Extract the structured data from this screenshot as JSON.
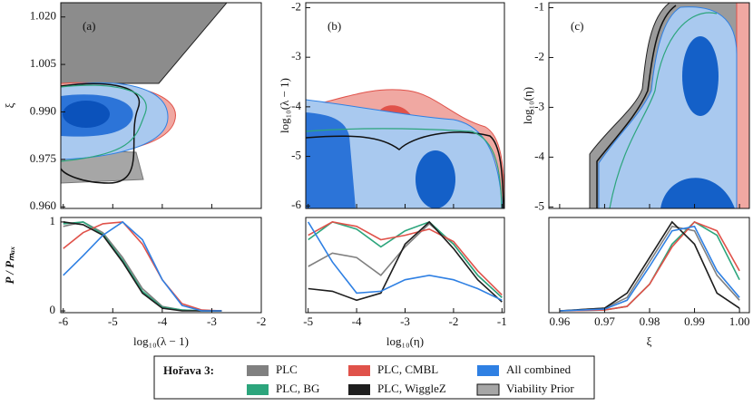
{
  "chart_data": [
    {
      "type": "contour",
      "label": "(a)",
      "ylabel": "ξ",
      "ylim": [
        0.9595,
        1.0245
      ],
      "yticks": [
        {
          "value": 1.02,
          "label": "1.020"
        },
        1.005,
        {
          "value": 0.99,
          "label": "0.990"
        },
        0.975,
        {
          "value": 0.96,
          "label": "0.960"
        }
      ]
    },
    {
      "type": "contour",
      "label": "(b)",
      "ylabel": "log₁₀(λ − 1)",
      "ylim": [
        -6.05,
        -1.9
      ],
      "yticks": [
        -2,
        -3,
        -4,
        -5,
        -6
      ]
    },
    {
      "type": "contour",
      "label": "(c)",
      "ylabel": "log₁₀(η)",
      "ylim": [
        -5.03,
        -0.9
      ],
      "yticks": [
        -1,
        -2,
        -3,
        -4,
        -5
      ]
    },
    {
      "type": "line",
      "xlabel": "log₁₀(λ − 1)",
      "ylabel": "P / Pₘₐₓ",
      "xlim": [
        -6.05,
        -2
      ],
      "xticks": [
        -6,
        -5,
        -4,
        -3,
        -2
      ],
      "ylim": [
        -0.02,
        1.05
      ],
      "yticks": [
        0,
        1
      ],
      "x": [
        -6,
        -5.6,
        -5.2,
        -4.8,
        -4.4,
        -4,
        -3.6,
        -3.2,
        -2.8
      ],
      "series": [
        {
          "name": "PLC",
          "color": "#808080",
          "values": [
            0.95,
            1,
            0.88,
            0.6,
            0.25,
            0.05,
            0.01,
            0,
            0
          ]
        },
        {
          "name": "PLC, BG",
          "color": "#2ca57c",
          "values": [
            0.98,
            1,
            0.86,
            0.57,
            0.22,
            0.04,
            0.01,
            0,
            0
          ]
        },
        {
          "name": "PLC, CMBL",
          "color": "#e0524a",
          "values": [
            0.7,
            0.88,
            0.98,
            1,
            0.75,
            0.35,
            0.08,
            0.01,
            0
          ]
        },
        {
          "name": "PLC, WiggleZ",
          "color": "#1e1e1e",
          "values": [
            1,
            0.97,
            0.85,
            0.55,
            0.2,
            0.03,
            0,
            0,
            0
          ]
        },
        {
          "name": "All combined",
          "color": "#2f80e3",
          "values": [
            0.4,
            0.62,
            0.85,
            1,
            0.8,
            0.35,
            0.06,
            0,
            0
          ]
        }
      ]
    },
    {
      "type": "line",
      "xlabel": "log₁₀(η)",
      "xlim": [
        -5.05,
        -0.95
      ],
      "xticks": [
        -5,
        -4,
        -3,
        -2,
        -1
      ],
      "ylim": [
        -0.02,
        1.05
      ],
      "x": [
        -5,
        -4.5,
        -4,
        -3.5,
        -3,
        -2.5,
        -2,
        -1.5,
        -1
      ],
      "series": [
        {
          "name": "PLC",
          "color": "#808080",
          "values": [
            0.5,
            0.65,
            0.6,
            0.4,
            0.72,
            0.98,
            0.75,
            0.4,
            0.15
          ]
        },
        {
          "name": "PLC, BG",
          "color": "#2ca57c",
          "values": [
            0.8,
            1,
            0.92,
            0.72,
            0.9,
            1,
            0.75,
            0.4,
            0.15
          ]
        },
        {
          "name": "PLC, CMBL",
          "color": "#e0524a",
          "values": [
            0.85,
            1,
            0.95,
            0.8,
            0.85,
            0.92,
            0.78,
            0.45,
            0.18
          ]
        },
        {
          "name": "PLC, WiggleZ",
          "color": "#1e1e1e",
          "values": [
            0.25,
            0.22,
            0.12,
            0.2,
            0.75,
            1,
            0.7,
            0.35,
            0.1
          ]
        },
        {
          "name": "All combined",
          "color": "#2f80e3",
          "values": [
            1,
            0.55,
            0.2,
            0.22,
            0.35,
            0.4,
            0.35,
            0.25,
            0.12
          ]
        }
      ]
    },
    {
      "type": "line",
      "xlabel": "ξ",
      "xlim": [
        0.9576,
        1.0022
      ],
      "xticks": [
        0.96,
        0.97,
        0.98,
        0.99,
        {
          "value": 1,
          "label": "1.00"
        }
      ],
      "ylim": [
        -0.02,
        1.05
      ],
      "x": [
        0.96,
        0.97,
        0.975,
        0.98,
        0.985,
        0.99,
        0.995,
        1.0
      ],
      "series": [
        {
          "name": "PLC",
          "color": "#808080",
          "values": [
            0,
            0.03,
            0.15,
            0.55,
            0.95,
            0.9,
            0.4,
            0.12
          ]
        },
        {
          "name": "PLC, BG",
          "color": "#2ca57c",
          "values": [
            0,
            0.01,
            0.05,
            0.3,
            0.75,
            1,
            0.85,
            0.35
          ]
        },
        {
          "name": "PLC, CMBL",
          "color": "#e0524a",
          "values": [
            0,
            0.01,
            0.05,
            0.3,
            0.72,
            1,
            0.9,
            0.45
          ]
        },
        {
          "name": "PLC, WiggleZ",
          "color": "#1e1e1e",
          "values": [
            0,
            0.03,
            0.2,
            0.6,
            1,
            0.75,
            0.2,
            0.03
          ]
        },
        {
          "name": "All combined",
          "color": "#2f80e3",
          "values": [
            0,
            0.02,
            0.12,
            0.5,
            0.9,
            0.95,
            0.45,
            0.15
          ]
        }
      ]
    }
  ],
  "legend": {
    "title": "Hořava 3:",
    "extra": {
      "name": "Viability Prior",
      "color": "#a6a6a6"
    }
  }
}
